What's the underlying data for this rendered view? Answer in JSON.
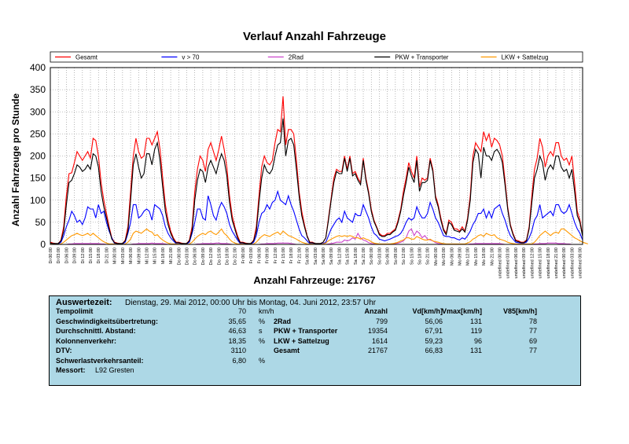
{
  "chart_data": {
    "type": "line",
    "title": "Verlauf Anzahl Fahrzeuge",
    "ylabel": "Anzahl Fahrzeuge pro Stunde",
    "xlabel": "Anzahl Fahrzeuge: 21767",
    "ylim": [
      0,
      400
    ],
    "yticks": [
      0,
      50,
      100,
      150,
      200,
      250,
      300,
      350,
      400
    ],
    "grid": true,
    "legend_position": "top",
    "x_tick_step_hours": 3,
    "days": [
      "Di",
      "Mi",
      "Do",
      "Fr",
      "Sa",
      "So",
      "Mo"
    ],
    "x_tick_times": [
      "00:00",
      "03:00",
      "06:00",
      "09:00",
      "12:00",
      "15:00",
      "18:00",
      "21:00"
    ],
    "series": [
      {
        "name": "Gesamt",
        "color": "#ff0000",
        "values": [
          5,
          3,
          2,
          2,
          10,
          40,
          110,
          160,
          162,
          185,
          210,
          200,
          190,
          200,
          210,
          195,
          240,
          235,
          200,
          140,
          100,
          70,
          40,
          15,
          5,
          3,
          2,
          2,
          10,
          40,
          120,
          200,
          240,
          210,
          195,
          200,
          240,
          240,
          225,
          240,
          255,
          215,
          150,
          90,
          55,
          30,
          15,
          5,
          5,
          3,
          2,
          2,
          10,
          40,
          120,
          170,
          200,
          190,
          165,
          215,
          230,
          210,
          190,
          215,
          245,
          215,
          175,
          110,
          65,
          40,
          20,
          5,
          5,
          3,
          2,
          2,
          10,
          40,
          110,
          175,
          200,
          185,
          180,
          190,
          230,
          260,
          255,
          335,
          225,
          260,
          260,
          250,
          190,
          120,
          75,
          45,
          20,
          5,
          5,
          2,
          2,
          2,
          5,
          15,
          60,
          105,
          150,
          170,
          165,
          165,
          200,
          170,
          200,
          160,
          165,
          150,
          140,
          195,
          150,
          120,
          80,
          55,
          40,
          25,
          20,
          20,
          25,
          25,
          30,
          35,
          55,
          80,
          120,
          150,
          185,
          165,
          150,
          200,
          130,
          150,
          145,
          150,
          195,
          170,
          110,
          90,
          60,
          35,
          25,
          55,
          50,
          35,
          35,
          30,
          40,
          30,
          60,
          110,
          200,
          230,
          220,
          210,
          255,
          235,
          250,
          220,
          240,
          235,
          225,
          200,
          145,
          85,
          45,
          25,
          10,
          8,
          5,
          5,
          10,
          40,
          110,
          170,
          195,
          240,
          220,
          175,
          200,
          210,
          200,
          230,
          230,
          200,
          190,
          195,
          180,
          200,
          140,
          75,
          55,
          20
        ]
      },
      {
        "name": "v > 70",
        "color": "#0000ff",
        "values": [
          2,
          1,
          1,
          1,
          5,
          20,
          40,
          55,
          75,
          65,
          50,
          55,
          45,
          60,
          85,
          80,
          80,
          60,
          90,
          70,
          75,
          50,
          30,
          15,
          2,
          1,
          1,
          1,
          5,
          25,
          50,
          90,
          90,
          60,
          65,
          75,
          80,
          75,
          55,
          90,
          85,
          80,
          65,
          40,
          25,
          15,
          8,
          2,
          2,
          1,
          1,
          1,
          5,
          25,
          50,
          80,
          80,
          60,
          55,
          110,
          90,
          65,
          55,
          80,
          95,
          85,
          70,
          45,
          30,
          20,
          10,
          2,
          2,
          1,
          1,
          1,
          5,
          20,
          50,
          70,
          75,
          90,
          80,
          95,
          100,
          120,
          100,
          95,
          90,
          110,
          90,
          75,
          55,
          35,
          20,
          15,
          8,
          2,
          2,
          1,
          1,
          1,
          2,
          5,
          20,
          35,
          45,
          55,
          60,
          50,
          75,
          60,
          55,
          50,
          70,
          65,
          65,
          90,
          75,
          60,
          40,
          25,
          20,
          12,
          10,
          8,
          10,
          12,
          15,
          18,
          20,
          25,
          35,
          50,
          60,
          55,
          60,
          85,
          70,
          60,
          60,
          70,
          95,
          80,
          60,
          50,
          35,
          20,
          18,
          18,
          15,
          15,
          12,
          10,
          15,
          12,
          20,
          30,
          45,
          55,
          70,
          70,
          80,
          60,
          75,
          60,
          80,
          85,
          90,
          70,
          55,
          35,
          20,
          12,
          5,
          4,
          3,
          3,
          5,
          15,
          30,
          55,
          65,
          90,
          60,
          65,
          70,
          75,
          65,
          90,
          90,
          75,
          70,
          75,
          90,
          70,
          50,
          35,
          25,
          10
        ]
      },
      {
        "name": "2Rad",
        "color": "#cc44cc",
        "values": [
          0,
          0,
          0,
          0,
          0,
          0,
          0,
          1,
          1,
          2,
          2,
          2,
          2,
          2,
          2,
          2,
          2,
          2,
          2,
          1,
          1,
          0,
          0,
          0,
          0,
          0,
          0,
          0,
          0,
          0,
          0,
          1,
          1,
          2,
          2,
          2,
          2,
          2,
          3,
          2,
          2,
          2,
          2,
          1,
          0,
          0,
          0,
          0,
          0,
          0,
          0,
          0,
          0,
          0,
          0,
          1,
          1,
          2,
          2,
          2,
          2,
          2,
          3,
          3,
          2,
          2,
          2,
          1,
          0,
          0,
          0,
          0,
          0,
          0,
          0,
          0,
          0,
          0,
          0,
          1,
          1,
          2,
          2,
          2,
          2,
          3,
          3,
          3,
          3,
          3,
          2,
          1,
          0,
          0,
          0,
          0,
          0,
          0,
          0,
          0,
          0,
          0,
          0,
          0,
          1,
          2,
          3,
          5,
          5,
          5,
          10,
          8,
          10,
          15,
          12,
          25,
          15,
          10,
          8,
          4,
          2,
          1,
          0,
          0,
          0,
          0,
          0,
          0,
          1,
          2,
          3,
          5,
          8,
          15,
          30,
          35,
          20,
          30,
          25,
          15,
          20,
          12,
          10,
          8,
          4,
          2,
          1,
          0,
          0,
          0,
          0,
          0,
          0,
          0,
          0,
          0,
          0,
          1,
          1,
          2,
          2,
          2,
          2,
          2,
          2,
          2,
          2,
          2,
          2,
          1,
          0,
          0,
          0,
          0,
          0,
          0,
          0,
          0,
          0,
          0,
          0,
          1,
          1,
          2,
          2,
          2,
          3,
          3,
          3,
          3,
          2,
          2,
          2,
          1,
          1,
          0,
          0,
          0
        ]
      },
      {
        "name": "PKW + Transporter",
        "color": "#000000",
        "values": [
          3,
          2,
          2,
          2,
          8,
          30,
          90,
          140,
          145,
          160,
          180,
          175,
          165,
          170,
          180,
          170,
          205,
          200,
          175,
          120,
          85,
          60,
          35,
          12,
          4,
          2,
          2,
          2,
          8,
          30,
          100,
          180,
          205,
          175,
          150,
          160,
          205,
          205,
          180,
          215,
          230,
          190,
          130,
          75,
          45,
          25,
          12,
          4,
          4,
          2,
          2,
          2,
          8,
          30,
          100,
          145,
          170,
          165,
          140,
          175,
          190,
          175,
          160,
          185,
          205,
          190,
          155,
          95,
          55,
          35,
          15,
          4,
          4,
          2,
          2,
          2,
          8,
          30,
          95,
          150,
          180,
          165,
          160,
          170,
          200,
          225,
          230,
          285,
          200,
          235,
          240,
          225,
          170,
          110,
          65,
          40,
          18,
          4,
          4,
          2,
          2,
          2,
          5,
          15,
          55,
          100,
          140,
          165,
          160,
          160,
          195,
          165,
          195,
          155,
          160,
          145,
          135,
          190,
          145,
          115,
          75,
          52,
          38,
          22,
          18,
          18,
          22,
          22,
          28,
          32,
          50,
          75,
          110,
          140,
          175,
          155,
          140,
          190,
          120,
          140,
          140,
          145,
          190,
          165,
          105,
          85,
          55,
          32,
          22,
          50,
          45,
          32,
          30,
          28,
          35,
          28,
          55,
          100,
          185,
          215,
          205,
          150,
          220,
          200,
          200,
          190,
          210,
          215,
          205,
          185,
          135,
          80,
          42,
          22,
          8,
          6,
          4,
          4,
          8,
          35,
          95,
          150,
          170,
          200,
          185,
          145,
          170,
          180,
          170,
          200,
          200,
          175,
          165,
          170,
          150,
          170,
          120,
          65,
          50,
          18
        ]
      },
      {
        "name": "LKW + Sattelzug",
        "color": "#ff9900",
        "values": [
          1,
          0,
          0,
          0,
          1,
          5,
          10,
          15,
          20,
          22,
          25,
          22,
          20,
          22,
          25,
          20,
          25,
          20,
          15,
          10,
          6,
          3,
          1,
          1,
          1,
          0,
          0,
          0,
          1,
          5,
          12,
          25,
          30,
          28,
          25,
          30,
          35,
          30,
          28,
          20,
          22,
          15,
          10,
          6,
          3,
          1,
          1,
          1,
          1,
          0,
          0,
          0,
          1,
          5,
          12,
          18,
          22,
          25,
          22,
          28,
          30,
          25,
          22,
          28,
          35,
          25,
          20,
          12,
          6,
          3,
          1,
          1,
          1,
          0,
          0,
          0,
          1,
          5,
          12,
          18,
          22,
          20,
          18,
          22,
          25,
          28,
          22,
          30,
          25,
          20,
          18,
          15,
          12,
          8,
          5,
          3,
          1,
          1,
          1,
          0,
          0,
          0,
          1,
          3,
          8,
          12,
          15,
          18,
          20,
          18,
          20,
          18,
          20,
          18,
          15,
          15,
          12,
          15,
          12,
          10,
          6,
          3,
          2,
          1,
          1,
          1,
          1,
          1,
          2,
          3,
          5,
          8,
          10,
          15,
          15,
          12,
          12,
          18,
          15,
          12,
          10,
          10,
          12,
          8,
          6,
          5,
          3,
          2,
          1,
          1,
          1,
          1,
          1,
          1,
          1,
          1,
          3,
          6,
          12,
          15,
          20,
          22,
          18,
          25,
          22,
          20,
          22,
          15,
          12,
          10,
          8,
          5,
          3,
          2,
          1,
          1,
          1,
          1,
          1,
          1,
          1,
          5,
          12,
          20,
          25,
          30,
          25,
          20,
          25,
          28,
          25,
          35,
          35,
          30,
          25,
          20,
          15,
          12,
          8,
          5,
          3,
          1
        ]
      }
    ]
  },
  "info": {
    "auswertezeit_label": "Auswertezeit:",
    "auswertezeit_value": "Dienstag, 29. Mai 2012, 00:00 Uhr bis   Montag, 04. Juni 2012, 23:57 Uhr",
    "left_rows": [
      {
        "label": "Tempolimit",
        "value": "70",
        "unit": "km/h"
      },
      {
        "label": "Geschwindigkeitsübertretung:",
        "value": "35,65",
        "unit": "%"
      },
      {
        "label": "Durchschnittl. Abstand:",
        "value": "46,63",
        "unit": "s"
      },
      {
        "label": "Kolonnenverkehr:",
        "value": "18,35",
        "unit": "%"
      },
      {
        "label": "DTV:",
        "value": "3110",
        "unit": ""
      },
      {
        "label": "Schwerlastverkehrsanteil:",
        "value": "6,80",
        "unit": "%"
      },
      {
        "label": "Messort:",
        "value": "L92 Gresten",
        "unit": ""
      }
    ],
    "right_headers": [
      "Anzahl",
      "Vd[km/h]",
      "Vmax[km/h]",
      "V85[km/h]"
    ],
    "right_rows": [
      {
        "label": "2Rad",
        "cells": [
          "799",
          "56,06",
          "131",
          "78"
        ]
      },
      {
        "label": "PKW + Transporter",
        "cells": [
          "19354",
          "67,91",
          "119",
          "77"
        ]
      },
      {
        "label": "LKW + Sattelzug",
        "cells": [
          "1614",
          "59,23",
          "96",
          "69"
        ]
      },
      {
        "label": "Gesamt",
        "cells": [
          "21767",
          "66,83",
          "131",
          "77"
        ]
      }
    ]
  }
}
